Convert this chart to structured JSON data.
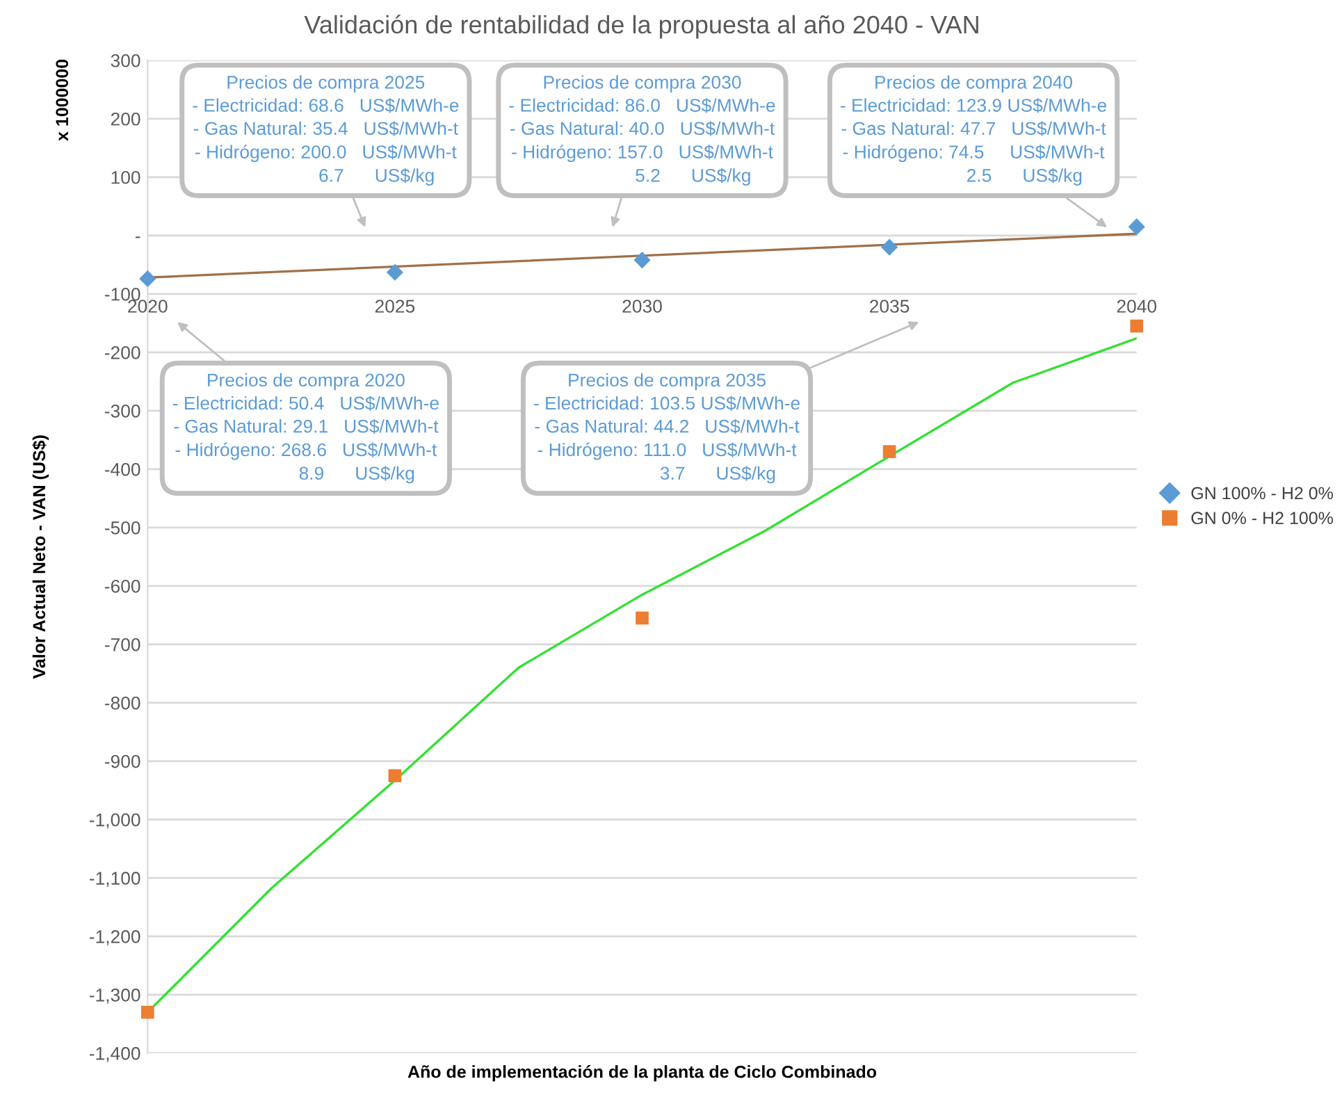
{
  "chart_data": {
    "type": "scatter",
    "title": "Validación de rentabilidad de la propuesta al año 2040 - VAN",
    "xlabel": "Año de implementación de la planta de Ciclo Combinado",
    "ylabel": "Valor Actual Neto - VAN (US$)",
    "series": [
      {
        "name": "GN 100% - H2 0%",
        "color": "#5b9bd5",
        "marker": "diamond",
        "x": [
          2020,
          2025,
          2030,
          2035,
          2040
        ],
        "values": [
          -74,
          -63,
          -42,
          -20,
          15
        ]
      },
      {
        "name": "GN 0% - H2 100%",
        "color": "#ed7d31",
        "marker": "square",
        "x": [
          2020,
          2025,
          2030,
          2035,
          2040
        ],
        "values": [
          -1330,
          -925,
          -655,
          -370,
          -155
        ]
      },
      {
        "type": "line",
        "color": "#a0704a",
        "x": [
          2020,
          2040
        ],
        "values": [
          -72,
          3
        ]
      },
      {
        "type": "line",
        "color": "#33e033",
        "x": [
          2020,
          2022.5,
          2025,
          2027.5,
          2030,
          2032.5,
          2035,
          2037.5,
          2040
        ],
        "values": [
          -1330,
          -1118,
          -933,
          -740,
          -615,
          -505,
          -378,
          -252,
          -176
        ]
      }
    ],
    "xlim": [
      2020,
      2040
    ],
    "xticks": [
      2020,
      2025,
      2030,
      2035,
      2040
    ],
    "ylim": [
      -1400,
      300
    ],
    "yticks": [
      300,
      200,
      100,
      {
        "value": 0,
        "label": "-"
      },
      -100,
      -200,
      -300,
      -400,
      -500,
      -600,
      -700,
      -800,
      -900,
      {
        "value": -1000,
        "label": "-1,000"
      },
      {
        "value": -1100,
        "label": "-1,100"
      },
      {
        "value": -1200,
        "label": "-1,200"
      },
      {
        "value": -1300,
        "label": "-1,300"
      },
      {
        "value": -1400,
        "label": "-1,400"
      }
    ],
    "grid": "y",
    "legend": "right",
    "annotations": [
      "x 1000000",
      "Precios de compra 2025\n- Electricidad: 68.6   US$/MWh-e\n- Gas Natural: 35.4   US$/MWh-t\n- Hidrógeno: 200.0   US$/MWh-t\n                    6.7      US$/kg",
      "Precios de compra 2030\n- Electricidad: 86.0   US$/MWh-e\n- Gas Natural: 40.0   US$/MWh-t\n- Hidrógeno: 157.0   US$/MWh-t\n                    5.2      US$/kg",
      "Precios de compra 2040\n- Electricidad: 123.9 US$/MWh-e\n- Gas Natural: 47.7   US$/MWh-t\n- Hidrógeno: 74.5     US$/MWh-t\n                    2.5      US$/kg",
      "Precios de compra 2020\n- Electricidad: 50.4   US$/MWh-e\n- Gas Natural: 29.1   US$/MWh-t\n- Hidrógeno: 268.6   US$/MWh-t\n                    8.9      US$/kg",
      "Precios de compra 2035\n- Electricidad: 103.5 US$/MWh-e\n- Gas Natural: 44.2   US$/MWh-t\n- Hidrógeno: 111.0   US$/MWh-t\n                    3.7      US$/kg"
    ]
  }
}
